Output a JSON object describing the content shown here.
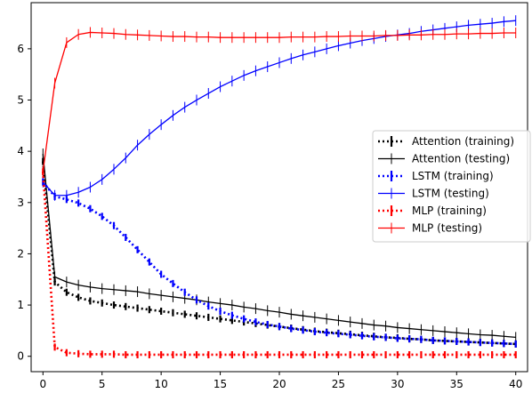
{
  "chart_data": {
    "type": "line",
    "title": "",
    "xlabel": "",
    "ylabel": "",
    "xlim": [
      -1,
      41
    ],
    "ylim": [
      -0.3,
      6.9
    ],
    "xticks": [
      0,
      5,
      10,
      15,
      20,
      25,
      30,
      35,
      40
    ],
    "yticks": [
      0,
      1,
      2,
      3,
      4,
      5,
      6
    ],
    "grid": false,
    "legend_position": "center-right",
    "x": [
      0,
      1,
      2,
      3,
      4,
      5,
      6,
      7,
      8,
      9,
      10,
      11,
      12,
      13,
      14,
      15,
      16,
      17,
      18,
      19,
      20,
      21,
      22,
      23,
      24,
      25,
      26,
      27,
      28,
      29,
      30,
      31,
      32,
      33,
      34,
      35,
      36,
      37,
      38,
      39,
      40
    ],
    "series": [
      {
        "name": "Attention (training)",
        "color": "#000000",
        "style": "dotted",
        "errorbar": true,
        "values": [
          3.8,
          1.45,
          1.25,
          1.15,
          1.08,
          1.04,
          1.0,
          0.97,
          0.94,
          0.91,
          0.88,
          0.85,
          0.82,
          0.79,
          0.76,
          0.73,
          0.7,
          0.67,
          0.64,
          0.61,
          0.58,
          0.55,
          0.52,
          0.49,
          0.47,
          0.45,
          0.43,
          0.41,
          0.39,
          0.37,
          0.36,
          0.34,
          0.33,
          0.31,
          0.3,
          0.29,
          0.28,
          0.27,
          0.26,
          0.25,
          0.24
        ]
      },
      {
        "name": "Attention (testing)",
        "color": "#000000",
        "style": "solid",
        "errorbar": true,
        "values": [
          3.95,
          1.55,
          1.45,
          1.39,
          1.35,
          1.32,
          1.3,
          1.28,
          1.26,
          1.22,
          1.19,
          1.16,
          1.13,
          1.1,
          1.06,
          1.03,
          1.0,
          0.96,
          0.93,
          0.89,
          0.86,
          0.82,
          0.79,
          0.76,
          0.73,
          0.7,
          0.67,
          0.64,
          0.61,
          0.59,
          0.56,
          0.54,
          0.52,
          0.5,
          0.48,
          0.46,
          0.44,
          0.42,
          0.41,
          0.39,
          0.37
        ]
      },
      {
        "name": "LSTM (training)",
        "color": "#0000ff",
        "style": "dotted",
        "errorbar": true,
        "values": [
          3.4,
          3.12,
          3.06,
          2.99,
          2.88,
          2.73,
          2.55,
          2.32,
          2.08,
          1.84,
          1.6,
          1.42,
          1.25,
          1.1,
          0.98,
          0.88,
          0.8,
          0.73,
          0.67,
          0.62,
          0.58,
          0.54,
          0.51,
          0.48,
          0.46,
          0.44,
          0.42,
          0.4,
          0.38,
          0.37,
          0.35,
          0.34,
          0.33,
          0.31,
          0.3,
          0.29,
          0.28,
          0.27,
          0.26,
          0.25,
          0.24
        ]
      },
      {
        "name": "LSTM (testing)",
        "color": "#0000ff",
        "style": "solid",
        "errorbar": true,
        "values": [
          3.4,
          3.14,
          3.14,
          3.2,
          3.3,
          3.45,
          3.65,
          3.87,
          4.12,
          4.33,
          4.52,
          4.7,
          4.86,
          5.0,
          5.13,
          5.26,
          5.37,
          5.48,
          5.57,
          5.65,
          5.73,
          5.81,
          5.88,
          5.94,
          6.0,
          6.06,
          6.11,
          6.16,
          6.2,
          6.24,
          6.27,
          6.3,
          6.34,
          6.37,
          6.4,
          6.43,
          6.46,
          6.48,
          6.5,
          6.53,
          6.55
        ]
      },
      {
        "name": "MLP (training)",
        "color": "#ff0000",
        "style": "dotted",
        "errorbar": true,
        "values": [
          3.6,
          0.18,
          0.07,
          0.05,
          0.04,
          0.04,
          0.04,
          0.03,
          0.03,
          0.03,
          0.03,
          0.03,
          0.03,
          0.03,
          0.03,
          0.03,
          0.03,
          0.03,
          0.03,
          0.03,
          0.03,
          0.03,
          0.03,
          0.03,
          0.03,
          0.03,
          0.03,
          0.03,
          0.03,
          0.03,
          0.03,
          0.03,
          0.03,
          0.03,
          0.03,
          0.03,
          0.03,
          0.03,
          0.03,
          0.03,
          0.03
        ]
      },
      {
        "name": "MLP (testing)",
        "color": "#ff0000",
        "style": "solid",
        "errorbar": true,
        "values": [
          3.6,
          5.33,
          6.12,
          6.28,
          6.32,
          6.31,
          6.3,
          6.28,
          6.27,
          6.26,
          6.25,
          6.24,
          6.24,
          6.23,
          6.23,
          6.22,
          6.22,
          6.22,
          6.22,
          6.22,
          6.22,
          6.23,
          6.23,
          6.23,
          6.24,
          6.24,
          6.25,
          6.25,
          6.25,
          6.26,
          6.26,
          6.27,
          6.27,
          6.28,
          6.28,
          6.29,
          6.29,
          6.3,
          6.3,
          6.31,
          6.31
        ]
      }
    ]
  }
}
